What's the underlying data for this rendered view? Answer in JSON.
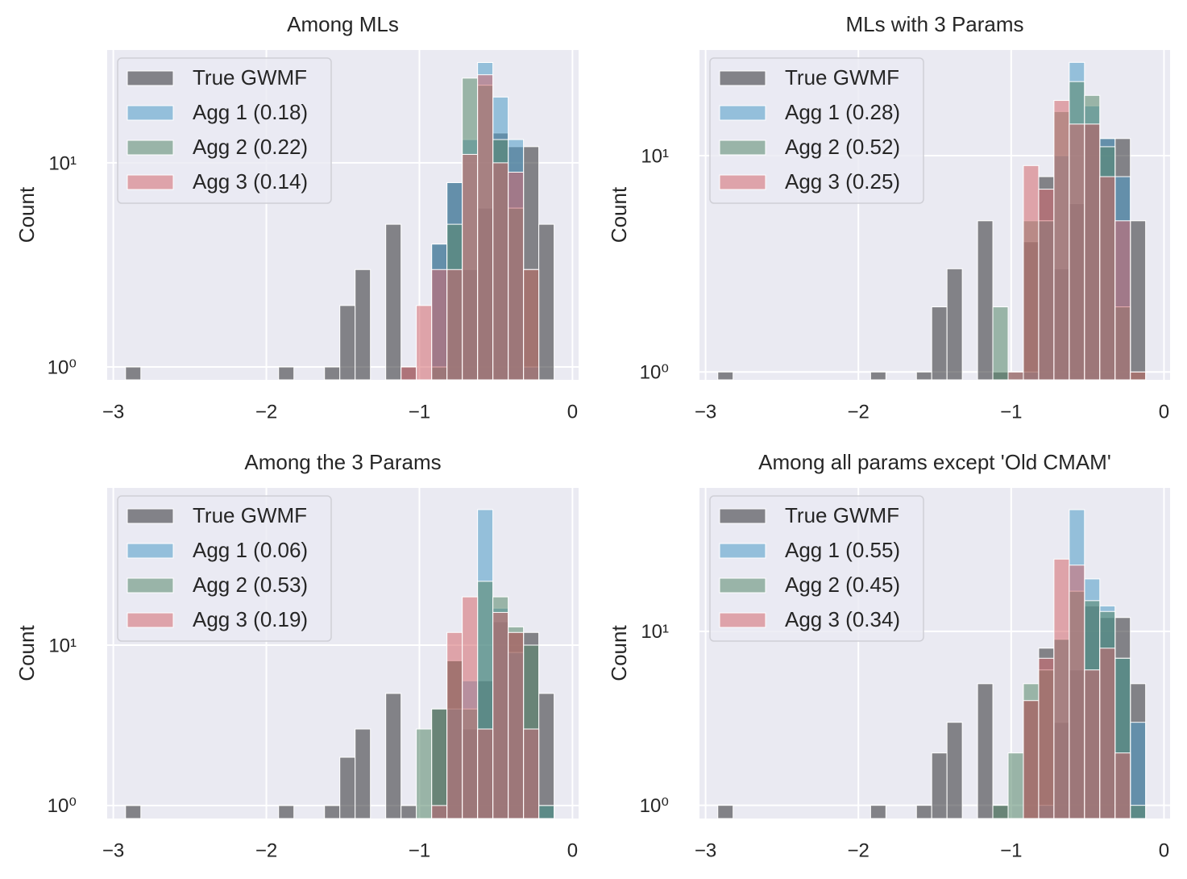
{
  "chart_data": [
    {
      "type": "histogram",
      "title": "Among MLs",
      "ylabel": "Count",
      "log_y": true,
      "grid": true,
      "legend": "upper left",
      "bins": [
        -2.92,
        -2.82,
        -2.72,
        -2.62,
        -2.52,
        -2.42,
        -2.32,
        -2.22,
        -2.12,
        -2.02,
        -1.92,
        -1.82,
        -1.72,
        -1.62,
        -1.52,
        -1.42,
        -1.32,
        -1.22,
        -1.12,
        -1.02,
        -0.92,
        -0.82,
        -0.72,
        -0.62,
        -0.52,
        -0.42,
        -0.32,
        -0.22,
        -0.12
      ],
      "xlim": [
        -3.04,
        0.04
      ],
      "xticks": [
        {
          "value": -3,
          "label": "−3"
        },
        {
          "value": -2,
          "label": "−2"
        },
        {
          "value": -1,
          "label": "−1"
        },
        0
      ],
      "ylim": [
        0.865,
        35.7
      ],
      "yticks": [
        {
          "value": 1,
          "label": "10⁰"
        },
        {
          "value": 10,
          "label": "10¹"
        }
      ],
      "series": [
        {
          "name": "True GWMF",
          "color": "#2b2b30",
          "values": [
            1,
            0,
            0,
            0,
            0,
            0,
            0,
            0,
            0,
            0,
            1,
            0,
            0,
            1,
            2,
            3,
            0,
            5,
            1,
            0,
            4,
            8,
            3,
            6,
            14,
            12,
            12,
            5
          ]
        },
        {
          "name": "Agg 1 (0.18)",
          "color": "#4c9ac6",
          "values": [
            0,
            0,
            0,
            0,
            0,
            0,
            0,
            0,
            0,
            0,
            0,
            0,
            0,
            0,
            0,
            0,
            0,
            0,
            0,
            0,
            4,
            8,
            13,
            31,
            21,
            13,
            1,
            0
          ]
        },
        {
          "name": "Agg 2 (0.22)",
          "color": "#55866a",
          "values": [
            0,
            0,
            0,
            0,
            0,
            0,
            0,
            0,
            0,
            0,
            0,
            0,
            0,
            0,
            0,
            0,
            0,
            0,
            0,
            0,
            1,
            5,
            26,
            24,
            13,
            6,
            3,
            0
          ]
        },
        {
          "name": "Agg 3 (0.14)",
          "color": "#d4676d",
          "values": [
            0,
            0,
            0,
            0,
            0,
            0,
            0,
            0,
            0,
            0,
            0,
            0,
            0,
            0,
            0,
            0,
            0,
            0,
            1,
            2,
            3,
            3,
            11,
            27,
            10,
            9,
            3,
            0
          ]
        }
      ]
    },
    {
      "type": "histogram",
      "title": "MLs with 3 Params",
      "ylabel": "Count",
      "log_y": true,
      "grid": true,
      "legend": "upper left",
      "bins": [
        -2.92,
        -2.82,
        -2.72,
        -2.62,
        -2.52,
        -2.42,
        -2.32,
        -2.22,
        -2.12,
        -2.02,
        -1.92,
        -1.82,
        -1.72,
        -1.62,
        -1.52,
        -1.42,
        -1.32,
        -1.22,
        -1.12,
        -1.02,
        -0.92,
        -0.82,
        -0.72,
        -0.62,
        -0.52,
        -0.42,
        -0.32,
        -0.22,
        -0.12
      ],
      "xlim": [
        -3.04,
        0.04
      ],
      "xticks": [
        {
          "value": -3,
          "label": "−3"
        },
        {
          "value": -2,
          "label": "−2"
        },
        {
          "value": -1,
          "label": "−1"
        },
        0
      ],
      "ylim": [
        0.92,
        30.8
      ],
      "yticks": [
        {
          "value": 1,
          "label": "10⁰"
        },
        {
          "value": 10,
          "label": "10¹"
        }
      ],
      "series": [
        {
          "name": "True GWMF",
          "color": "#2b2b30",
          "values": [
            1,
            0,
            0,
            0,
            0,
            0,
            0,
            0,
            0,
            0,
            1,
            0,
            0,
            1,
            2,
            3,
            0,
            5,
            1,
            0,
            4,
            8,
            3,
            6,
            14,
            12,
            12,
            5
          ]
        },
        {
          "name": "Agg 1 (0.28)",
          "color": "#4c9ac6",
          "values": [
            0,
            0,
            0,
            0,
            0,
            0,
            0,
            0,
            0,
            0,
            0,
            0,
            0,
            0,
            0,
            0,
            0,
            0,
            0,
            1,
            1,
            5,
            10,
            27,
            17,
            12,
            8,
            0
          ]
        },
        {
          "name": "Agg 2 (0.52)",
          "color": "#55866a",
          "values": [
            0,
            0,
            0,
            0,
            0,
            0,
            0,
            0,
            0,
            0,
            0,
            0,
            0,
            0,
            0,
            0,
            0,
            0,
            2,
            1,
            5,
            5,
            16,
            22,
            19,
            11,
            2,
            1
          ]
        },
        {
          "name": "Agg 3 (0.25)",
          "color": "#d4676d",
          "values": [
            0,
            0,
            0,
            0,
            0,
            0,
            0,
            0,
            0,
            0,
            0,
            0,
            0,
            0,
            0,
            0,
            0,
            0,
            0,
            1,
            9,
            7,
            18,
            14,
            14,
            8,
            5,
            1
          ]
        }
      ]
    },
    {
      "type": "histogram",
      "title": "Among the 3 Params",
      "ylabel": "Count",
      "log_y": true,
      "grid": true,
      "legend": "upper left",
      "bins": [
        -2.92,
        -2.82,
        -2.72,
        -2.62,
        -2.52,
        -2.42,
        -2.32,
        -2.22,
        -2.12,
        -2.02,
        -1.92,
        -1.82,
        -1.72,
        -1.62,
        -1.52,
        -1.42,
        -1.32,
        -1.22,
        -1.12,
        -1.02,
        -0.92,
        -0.82,
        -0.72,
        -0.62,
        -0.52,
        -0.42,
        -0.32,
        -0.22,
        -0.12
      ],
      "xlim": [
        -3.04,
        0.04
      ],
      "xticks": [
        {
          "value": -3,
          "label": "−3"
        },
        {
          "value": -2,
          "label": "−2"
        },
        {
          "value": -1,
          "label": "−1"
        },
        0
      ],
      "ylim": [
        0.83,
        95.6
      ],
      "yticks": [
        {
          "value": 1,
          "label": "10⁰"
        },
        {
          "value": 10,
          "label": "10¹"
        }
      ],
      "series": [
        {
          "name": "True GWMF",
          "color": "#2b2b30",
          "values": [
            1,
            0,
            0,
            0,
            0,
            0,
            0,
            0,
            0,
            0,
            1,
            0,
            0,
            1,
            2,
            3,
            0,
            5,
            1,
            0,
            4,
            8,
            3,
            6,
            14,
            12,
            12,
            5
          ]
        },
        {
          "name": "Agg 1 (0.06)",
          "color": "#4c9ac6",
          "values": [
            0,
            0,
            0,
            0,
            0,
            0,
            0,
            0,
            0,
            0,
            0,
            0,
            0,
            0,
            0,
            0,
            0,
            0,
            0,
            0,
            1,
            4,
            6,
            70,
            17,
            9,
            3,
            1
          ]
        },
        {
          "name": "Agg 2 (0.53)",
          "color": "#55866a",
          "values": [
            0,
            0,
            0,
            0,
            0,
            0,
            0,
            0,
            0,
            0,
            0,
            0,
            0,
            0,
            0,
            0,
            0,
            0,
            0,
            3,
            4,
            8,
            4,
            25,
            20,
            13,
            10,
            1
          ]
        },
        {
          "name": "Agg 3 (0.19)",
          "color": "#d4676d",
          "values": [
            0,
            0,
            0,
            0,
            0,
            0,
            0,
            0,
            0,
            0,
            0,
            0,
            0,
            0,
            0,
            0,
            0,
            0,
            0,
            0,
            1,
            12,
            20,
            3,
            16,
            12,
            3,
            0
          ]
        }
      ]
    },
    {
      "type": "histogram",
      "title": "Among all params except 'Old CMAM'",
      "ylabel": "Count",
      "log_y": true,
      "grid": true,
      "legend": "upper left",
      "bins": [
        -2.92,
        -2.82,
        -2.72,
        -2.62,
        -2.52,
        -2.42,
        -2.32,
        -2.22,
        -2.12,
        -2.02,
        -1.92,
        -1.82,
        -1.72,
        -1.62,
        -1.52,
        -1.42,
        -1.32,
        -1.22,
        -1.12,
        -1.02,
        -0.92,
        -0.82,
        -0.72,
        -0.62,
        -0.52,
        -0.42,
        -0.32,
        -0.22,
        -0.12
      ],
      "xlim": [
        -3.04,
        0.04
      ],
      "xticks": [
        {
          "value": -3,
          "label": "−3"
        },
        {
          "value": -2,
          "label": "−2"
        },
        {
          "value": -1,
          "label": "−1"
        },
        0
      ],
      "ylim": [
        0.84,
        66.7
      ],
      "yticks": [
        {
          "value": 1,
          "label": "10⁰"
        },
        {
          "value": 10,
          "label": "10¹"
        }
      ],
      "series": [
        {
          "name": "True GWMF",
          "color": "#2b2b30",
          "values": [
            1,
            0,
            0,
            0,
            0,
            0,
            0,
            0,
            0,
            0,
            1,
            0,
            0,
            1,
            2,
            3,
            0,
            5,
            1,
            0,
            4,
            8,
            3,
            6,
            14,
            12,
            12,
            5
          ]
        },
        {
          "name": "Agg 1 (0.55)",
          "color": "#4c9ac6",
          "values": [
            0,
            0,
            0,
            0,
            0,
            0,
            0,
            0,
            0,
            0,
            0,
            0,
            0,
            0,
            0,
            0,
            0,
            0,
            0,
            0,
            0,
            1,
            9,
            50,
            20,
            14,
            7,
            3
          ]
        },
        {
          "name": "Agg 2 (0.45)",
          "color": "#55866a",
          "values": [
            0,
            0,
            0,
            0,
            0,
            0,
            0,
            0,
            0,
            0,
            0,
            0,
            0,
            0,
            0,
            0,
            0,
            0,
            1,
            2,
            5,
            6,
            9,
            17,
            15,
            13,
            7,
            1
          ]
        },
        {
          "name": "Agg 3 (0.34)",
          "color": "#d4676d",
          "values": [
            0,
            0,
            0,
            0,
            0,
            0,
            0,
            0,
            0,
            0,
            0,
            0,
            0,
            0,
            0,
            0,
            0,
            0,
            0,
            0,
            4,
            7,
            26,
            24,
            6,
            8,
            2,
            0
          ]
        }
      ]
    }
  ]
}
